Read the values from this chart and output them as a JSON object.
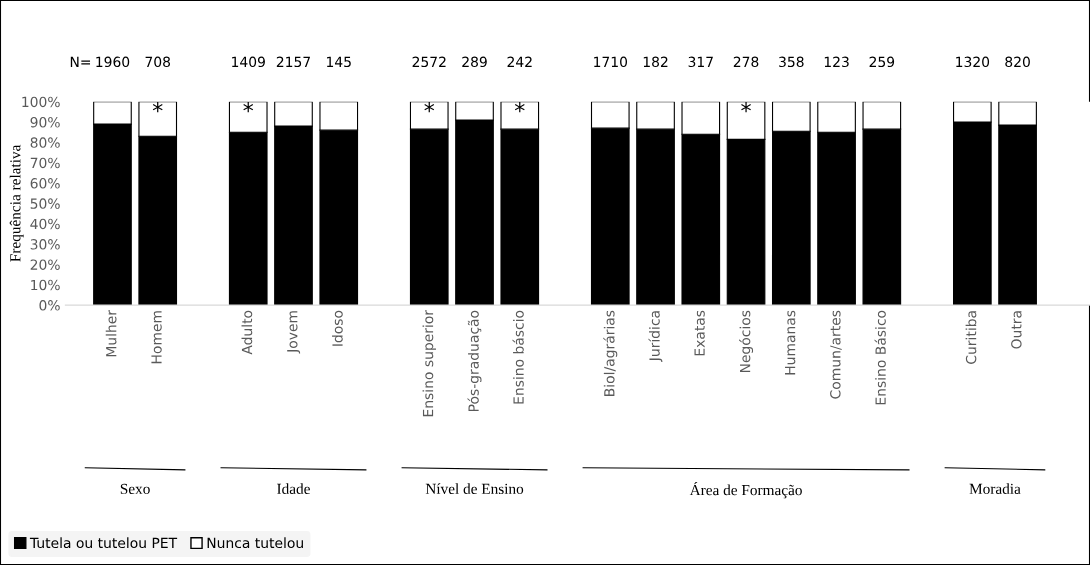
{
  "chart_data": {
    "type": "bar",
    "stacked": true,
    "ylabel": "Frequência relativa",
    "categories": [
      "Mulher",
      "Homem",
      null,
      "Adulto",
      "Jovem",
      "Idoso",
      null,
      "Ensino superior",
      "Pós-graduação",
      "Ensino báscio",
      null,
      "Biol/agrárias",
      "Jurídica",
      "Exatas",
      "Negócios",
      "Humanas",
      "Comun/artes",
      "Ensino Básico",
      null,
      "Curitiba",
      "Outra"
    ],
    "series": [
      {
        "name": "Tutela ou tutelou PET",
        "color": "#000000",
        "values": [
          89,
          83,
          null,
          85,
          88,
          86,
          null,
          86.5,
          91,
          86.5,
          null,
          87,
          86.5,
          84,
          81.5,
          85.5,
          85,
          86.5,
          null,
          90,
          88.5
        ]
      },
      {
        "name": "Nunca tutelou",
        "color": "#ffffff",
        "values": [
          11,
          17,
          null,
          15,
          12,
          14,
          null,
          13.5,
          9,
          13.5,
          null,
          13,
          13.5,
          16,
          18.5,
          14.5,
          15,
          13.5,
          null,
          10,
          11.5
        ]
      }
    ],
    "ylim": [
      0,
      100
    ],
    "yticks": [
      {
        "value": 0,
        "label": "0%"
      },
      {
        "value": 10,
        "label": "10%"
      },
      {
        "value": 20,
        "label": "20%"
      },
      {
        "value": 30,
        "label": "30%"
      },
      {
        "value": 40,
        "label": "40%"
      },
      {
        "value": 50,
        "label": "50%"
      },
      {
        "value": 60,
        "label": "60%"
      },
      {
        "value": 70,
        "label": "70%"
      },
      {
        "value": 80,
        "label": "80%"
      },
      {
        "value": 90,
        "label": "90%"
      },
      {
        "value": 100,
        "label": "100%"
      }
    ],
    "grid": false,
    "legend": "bottom left",
    "annotations": [
      "N=",
      "Sexo",
      "Idade",
      "Nível de Ensino",
      "Área de Formação",
      "Moradia",
      "1960",
      "708",
      "1409",
      "2157",
      "145",
      "2572",
      "289",
      "242",
      "1710",
      "182",
      "317",
      "278",
      "358",
      "123",
      "259",
      "1320",
      "820",
      {
        "text": "*",
        "x": "Homem",
        "y": 100
      },
      {
        "text": "*",
        "x": "Adulto",
        "y": 100
      },
      {
        "text": "*",
        "x": "Ensino superior",
        "y": 100
      },
      {
        "text": "*",
        "x": "Ensino báscio",
        "y": 100
      },
      {
        "text": "*",
        "x": "Negócios",
        "y": 100
      }
    ]
  }
}
